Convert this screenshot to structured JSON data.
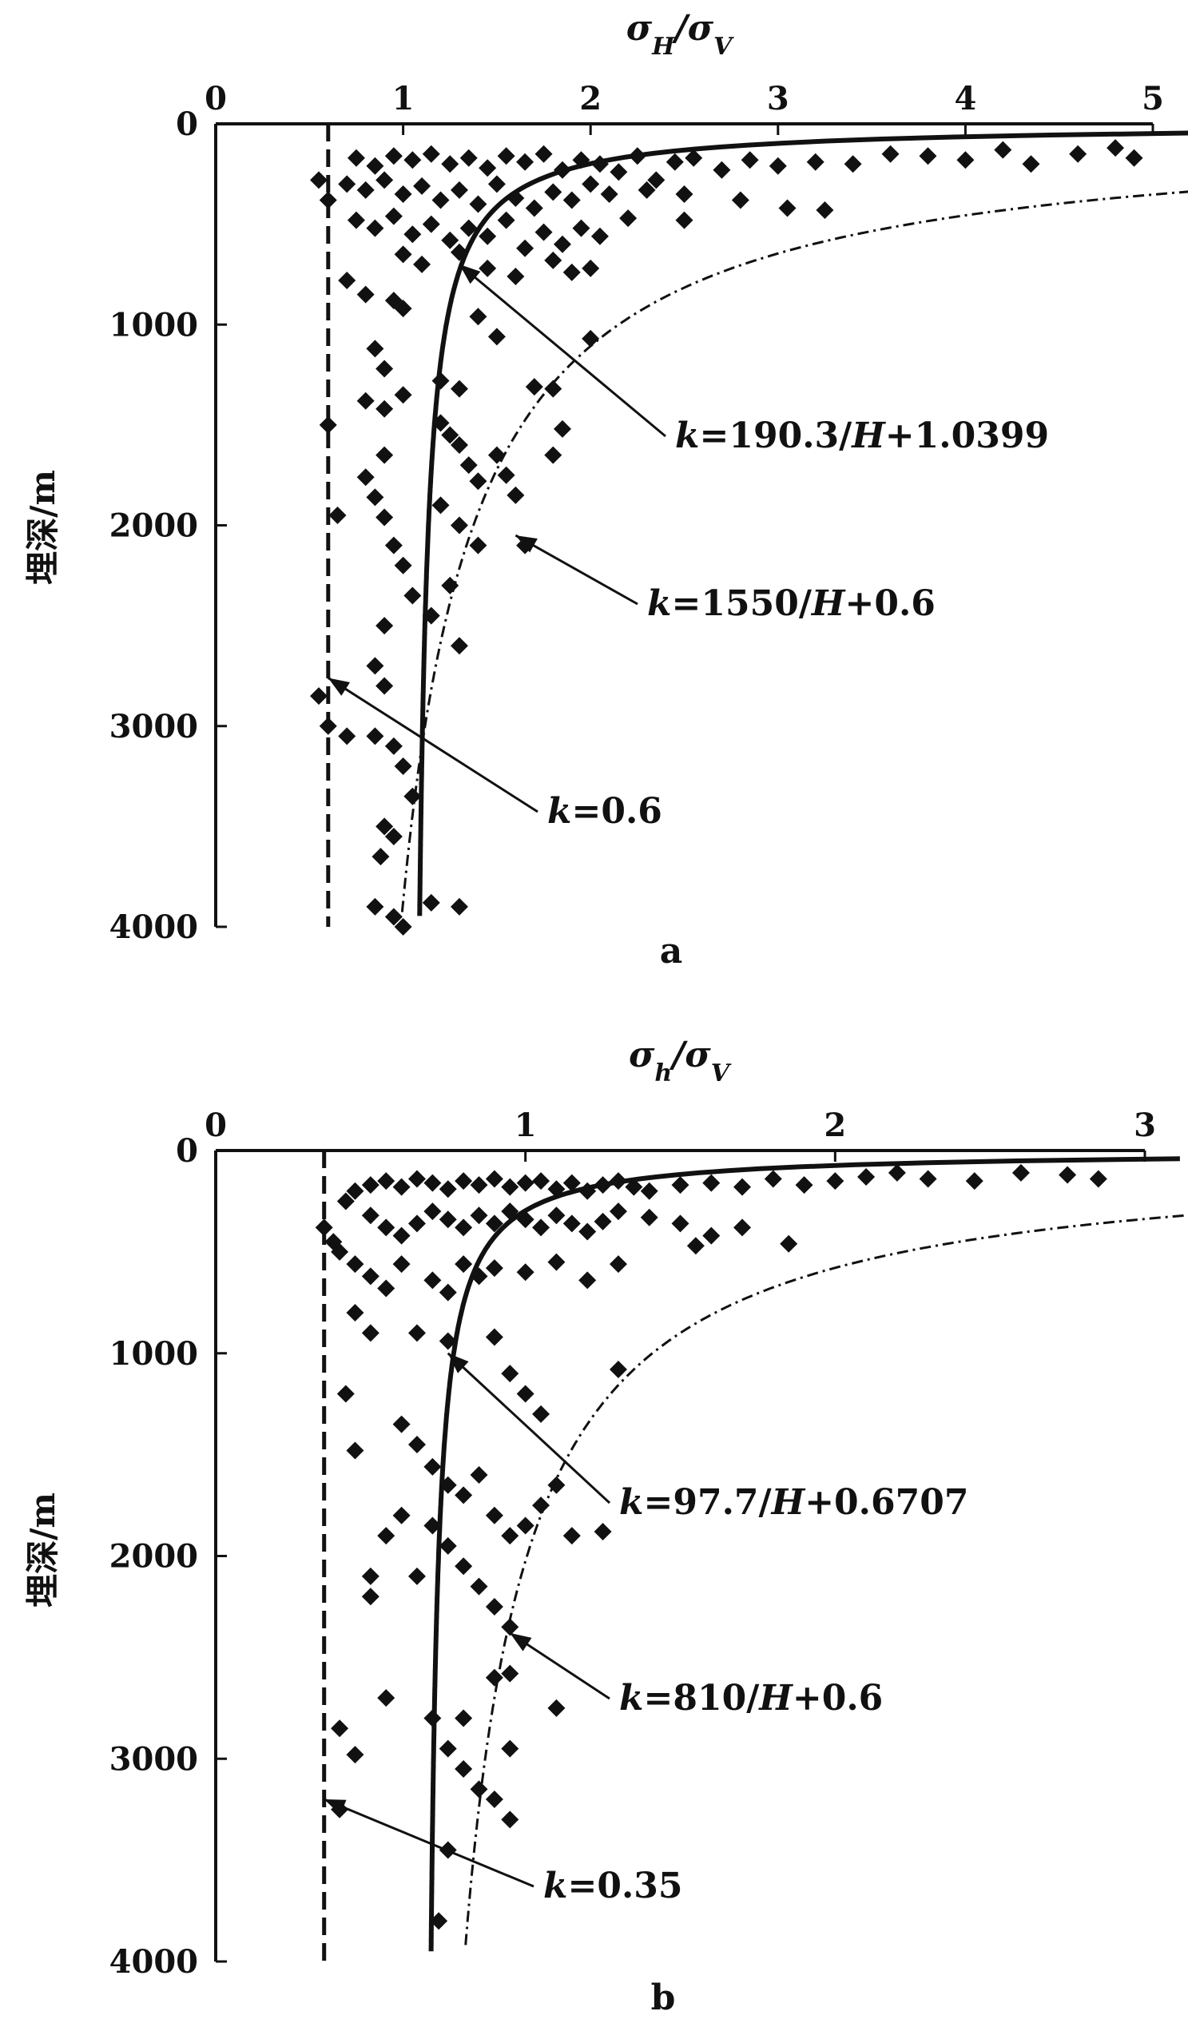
{
  "chart_data": [
    {
      "type": "scatter",
      "panel_label": "a",
      "x_label_parts": [
        {
          "t": "σ",
          "sub": false
        },
        {
          "t": "H",
          "sub": true
        },
        {
          "t": "/σ",
          "sub": false
        },
        {
          "t": "V",
          "sub": true
        }
      ],
      "ylabel": "埋深/m",
      "xlim": [
        0,
        5
      ],
      "ylim": [
        0,
        4000
      ],
      "y_inverted": true,
      "x_axis_position": "top",
      "x_ticks": [
        "0",
        "1",
        "2",
        "3",
        "4",
        "5"
      ],
      "y_ticks": [
        "0",
        "1000",
        "2000",
        "3000",
        "4000"
      ],
      "curves": [
        {
          "kind": "constant",
          "k": 0.6,
          "style": "dashed",
          "label": "k=0.6"
        },
        {
          "kind": "hyperbolic",
          "a": 190.3,
          "b": 1.0399,
          "style": "solid",
          "label": "k=190.3/H+1.0399"
        },
        {
          "kind": "hyperbolic",
          "a": 1550,
          "b": 0.6,
          "style": "dashdot",
          "label": "k=1550/H+0.6"
        }
      ],
      "annotations": [
        {
          "label": "k=190.3/H+1.0399",
          "parts": [
            {
              "t": "k",
              "i": true
            },
            {
              "t": "=190.3/",
              "i": false
            },
            {
              "t": "H",
              "i": true
            },
            {
              "t": "+1.0399",
              "i": false
            }
          ],
          "point": [
            1.3,
            700
          ]
        },
        {
          "label": "k=1550/H+0.6",
          "parts": [
            {
              "t": "k",
              "i": true
            },
            {
              "t": "=1550/",
              "i": false
            },
            {
              "t": "H",
              "i": true
            },
            {
              "t": "+0.6",
              "i": false
            }
          ],
          "point": [
            1.6,
            2050
          ]
        },
        {
          "label": "k=0.6",
          "parts": [
            {
              "t": "k",
              "i": true
            },
            {
              "t": "=0.6",
              "i": false
            }
          ],
          "point": [
            0.6,
            2760
          ]
        }
      ],
      "points": [
        [
          0.55,
          280
        ],
        [
          0.6,
          380
        ],
        [
          0.75,
          170
        ],
        [
          0.85,
          210
        ],
        [
          0.95,
          160
        ],
        [
          1.05,
          180
        ],
        [
          1.15,
          150
        ],
        [
          1.25,
          200
        ],
        [
          1.35,
          170
        ],
        [
          1.45,
          220
        ],
        [
          1.55,
          160
        ],
        [
          1.65,
          190
        ],
        [
          1.75,
          150
        ],
        [
          1.85,
          230
        ],
        [
          1.95,
          180
        ],
        [
          2.05,
          200
        ],
        [
          2.15,
          240
        ],
        [
          2.25,
          160
        ],
        [
          2.35,
          280
        ],
        [
          2.45,
          190
        ],
        [
          2.55,
          170
        ],
        [
          2.7,
          230
        ],
        [
          2.85,
          180
        ],
        [
          3.0,
          210
        ],
        [
          3.2,
          190
        ],
        [
          3.4,
          200
        ],
        [
          3.6,
          150
        ],
        [
          3.8,
          160
        ],
        [
          4.0,
          180
        ],
        [
          4.2,
          130
        ],
        [
          4.35,
          200
        ],
        [
          4.6,
          150
        ],
        [
          4.8,
          120
        ],
        [
          4.9,
          170
        ],
        [
          0.7,
          300
        ],
        [
          0.8,
          330
        ],
        [
          0.9,
          280
        ],
        [
          1.0,
          350
        ],
        [
          1.1,
          310
        ],
        [
          1.2,
          380
        ],
        [
          1.3,
          330
        ],
        [
          1.4,
          400
        ],
        [
          1.5,
          300
        ],
        [
          1.6,
          370
        ],
        [
          1.7,
          420
        ],
        [
          1.8,
          340
        ],
        [
          1.9,
          380
        ],
        [
          2.0,
          300
        ],
        [
          2.1,
          350
        ],
        [
          2.3,
          330
        ],
        [
          2.5,
          350
        ],
        [
          2.8,
          380
        ],
        [
          3.05,
          420
        ],
        [
          3.25,
          430
        ],
        [
          0.75,
          480
        ],
        [
          0.85,
          520
        ],
        [
          0.95,
          460
        ],
        [
          1.05,
          550
        ],
        [
          1.15,
          500
        ],
        [
          1.25,
          580
        ],
        [
          1.35,
          520
        ],
        [
          1.45,
          560
        ],
        [
          1.55,
          480
        ],
        [
          1.65,
          620
        ],
        [
          1.75,
          540
        ],
        [
          1.85,
          600
        ],
        [
          1.95,
          520
        ],
        [
          2.05,
          560
        ],
        [
          2.2,
          470
        ],
        [
          2.5,
          480
        ],
        [
          1.0,
          650
        ],
        [
          1.1,
          700
        ],
        [
          1.3,
          640
        ],
        [
          1.45,
          720
        ],
        [
          1.6,
          760
        ],
        [
          1.8,
          680
        ],
        [
          1.9,
          740
        ],
        [
          2.0,
          720
        ],
        [
          0.7,
          780
        ],
        [
          0.8,
          850
        ],
        [
          0.95,
          880
        ],
        [
          1.0,
          920
        ],
        [
          1.4,
          960
        ],
        [
          1.5,
          1060
        ],
        [
          0.85,
          1120
        ],
        [
          0.9,
          1220
        ],
        [
          2.0,
          1070
        ],
        [
          0.8,
          1380
        ],
        [
          0.9,
          1420
        ],
        [
          1.0,
          1350
        ],
        [
          1.2,
          1280
        ],
        [
          1.3,
          1320
        ],
        [
          1.7,
          1310
        ],
        [
          1.8,
          1320
        ],
        [
          1.85,
          1520
        ],
        [
          1.2,
          1490
        ],
        [
          1.25,
          1550
        ],
        [
          1.3,
          1600
        ],
        [
          1.35,
          1700
        ],
        [
          1.4,
          1780
        ],
        [
          1.5,
          1650
        ],
        [
          1.55,
          1750
        ],
        [
          1.8,
          1650
        ],
        [
          0.9,
          1650
        ],
        [
          0.8,
          1760
        ],
        [
          0.85,
          1860
        ],
        [
          0.9,
          1960
        ],
        [
          0.95,
          2100
        ],
        [
          1.0,
          2200
        ],
        [
          1.05,
          2350
        ],
        [
          1.15,
          2450
        ],
        [
          1.2,
          1900
        ],
        [
          1.3,
          2000
        ],
        [
          1.4,
          2100
        ],
        [
          1.6,
          1850
        ],
        [
          1.65,
          2100
        ],
        [
          1.25,
          2300
        ],
        [
          0.9,
          2500
        ],
        [
          0.85,
          2700
        ],
        [
          0.9,
          2800
        ],
        [
          0.55,
          2850
        ],
        [
          0.6,
          3000
        ],
        [
          0.85,
          3050
        ],
        [
          0.95,
          3100
        ],
        [
          1.0,
          3200
        ],
        [
          1.05,
          3350
        ],
        [
          0.9,
          3500
        ],
        [
          0.95,
          3550
        ],
        [
          0.88,
          3650
        ],
        [
          0.85,
          3900
        ],
        [
          0.95,
          3950
        ],
        [
          1.0,
          4000
        ],
        [
          1.3,
          3900
        ],
        [
          1.15,
          3880
        ],
        [
          1.3,
          2600
        ],
        [
          0.6,
          1500
        ],
        [
          0.65,
          1950
        ],
        [
          0.7,
          3050
        ]
      ]
    },
    {
      "type": "scatter",
      "panel_label": "b",
      "x_label_parts": [
        {
          "t": "σ",
          "sub": false
        },
        {
          "t": "h",
          "sub": true
        },
        {
          "t": "/σ",
          "sub": false
        },
        {
          "t": "V",
          "sub": true
        }
      ],
      "ylabel": "埋深/m",
      "xlim": [
        0,
        3
      ],
      "ylim": [
        0,
        4000
      ],
      "y_inverted": true,
      "x_axis_position": "top",
      "x_ticks": [
        "0",
        "1",
        "2",
        "3"
      ],
      "y_ticks": [
        "0",
        "1000",
        "2000",
        "3000",
        "4000"
      ],
      "curves": [
        {
          "kind": "constant",
          "k": 0.35,
          "style": "dashed",
          "label": "k=0.35"
        },
        {
          "kind": "hyperbolic",
          "a": 97.7,
          "b": 0.6707,
          "style": "solid",
          "label": "k=97.7/H+0.6707"
        },
        {
          "kind": "hyperbolic",
          "a": 810,
          "b": 0.6,
          "style": "dashdot",
          "label": "k=810/H+0.6"
        }
      ],
      "annotations": [
        {
          "label": "k=97.7/H+0.6707",
          "parts": [
            {
              "t": "k",
              "i": true
            },
            {
              "t": "=97.7/",
              "i": false
            },
            {
              "t": "H",
              "i": true
            },
            {
              "t": "+0.6707",
              "i": false
            }
          ],
          "point": [
            0.75,
            1000
          ]
        },
        {
          "label": "k=810/H+0.6",
          "parts": [
            {
              "t": "k",
              "i": true
            },
            {
              "t": "=810/",
              "i": false
            },
            {
              "t": "H",
              "i": true
            },
            {
              "t": "+0.6",
              "i": false
            }
          ],
          "point": [
            0.95,
            2380
          ]
        },
        {
          "label": "k=0.35",
          "parts": [
            {
              "t": "k",
              "i": true
            },
            {
              "t": "=0.35",
              "i": false
            }
          ],
          "point": [
            0.35,
            3200
          ]
        }
      ],
      "points": [
        [
          0.35,
          380
        ],
        [
          0.38,
          450
        ],
        [
          0.42,
          250
        ],
        [
          0.45,
          200
        ],
        [
          0.5,
          170
        ],
        [
          0.55,
          150
        ],
        [
          0.6,
          180
        ],
        [
          0.65,
          140
        ],
        [
          0.7,
          160
        ],
        [
          0.75,
          190
        ],
        [
          0.8,
          150
        ],
        [
          0.85,
          170
        ],
        [
          0.9,
          140
        ],
        [
          0.95,
          180
        ],
        [
          1.0,
          160
        ],
        [
          1.05,
          150
        ],
        [
          1.1,
          190
        ],
        [
          1.15,
          160
        ],
        [
          1.2,
          200
        ],
        [
          1.25,
          170
        ],
        [
          1.3,
          150
        ],
        [
          1.35,
          180
        ],
        [
          1.4,
          200
        ],
        [
          1.5,
          170
        ],
        [
          1.6,
          160
        ],
        [
          1.7,
          180
        ],
        [
          1.8,
          140
        ],
        [
          1.9,
          170
        ],
        [
          2.0,
          150
        ],
        [
          2.1,
          130
        ],
        [
          2.2,
          110
        ],
        [
          2.3,
          140
        ],
        [
          2.45,
          150
        ],
        [
          2.6,
          110
        ],
        [
          2.75,
          120
        ],
        [
          2.85,
          140
        ],
        [
          0.4,
          500
        ],
        [
          0.45,
          560
        ],
        [
          0.5,
          320
        ],
        [
          0.55,
          380
        ],
        [
          0.6,
          420
        ],
        [
          0.65,
          360
        ],
        [
          0.7,
          300
        ],
        [
          0.75,
          340
        ],
        [
          0.8,
          380
        ],
        [
          0.85,
          320
        ],
        [
          0.9,
          360
        ],
        [
          0.95,
          300
        ],
        [
          1.0,
          340
        ],
        [
          1.05,
          380
        ],
        [
          1.1,
          320
        ],
        [
          1.15,
          360
        ],
        [
          1.2,
          400
        ],
        [
          1.25,
          350
        ],
        [
          1.3,
          300
        ],
        [
          1.4,
          330
        ],
        [
          1.5,
          360
        ],
        [
          1.6,
          420
        ],
        [
          1.7,
          380
        ],
        [
          1.55,
          470
        ],
        [
          1.85,
          460
        ],
        [
          0.5,
          620
        ],
        [
          0.55,
          680
        ],
        [
          0.6,
          560
        ],
        [
          0.7,
          640
        ],
        [
          0.75,
          700
        ],
        [
          0.8,
          560
        ],
        [
          0.85,
          620
        ],
        [
          0.9,
          580
        ],
        [
          1.0,
          600
        ],
        [
          1.1,
          550
        ],
        [
          1.2,
          640
        ],
        [
          1.3,
          560
        ],
        [
          0.45,
          800
        ],
        [
          0.5,
          900
        ],
        [
          0.65,
          900
        ],
        [
          0.75,
          940
        ],
        [
          0.9,
          920
        ],
        [
          0.95,
          1100
        ],
        [
          1.0,
          1200
        ],
        [
          1.05,
          1300
        ],
        [
          1.3,
          1080
        ],
        [
          0.42,
          1200
        ],
        [
          0.45,
          1480
        ],
        [
          0.6,
          1350
        ],
        [
          0.65,
          1450
        ],
        [
          0.7,
          1560
        ],
        [
          0.75,
          1650
        ],
        [
          0.8,
          1700
        ],
        [
          0.85,
          1600
        ],
        [
          0.9,
          1800
        ],
        [
          0.95,
          1900
        ],
        [
          1.0,
          1850
        ],
        [
          1.05,
          1750
        ],
        [
          1.1,
          1650
        ],
        [
          1.15,
          1900
        ],
        [
          0.6,
          1800
        ],
        [
          0.7,
          1850
        ],
        [
          0.75,
          1950
        ],
        [
          0.8,
          2050
        ],
        [
          0.85,
          2150
        ],
        [
          0.9,
          2250
        ],
        [
          0.95,
          2350
        ],
        [
          0.65,
          2100
        ],
        [
          0.5,
          2100
        ],
        [
          0.5,
          2200
        ],
        [
          0.55,
          2700
        ],
        [
          0.7,
          2800
        ],
        [
          0.8,
          2800
        ],
        [
          0.9,
          2600
        ],
        [
          0.95,
          2580
        ],
        [
          0.75,
          2950
        ],
        [
          0.8,
          3050
        ],
        [
          0.85,
          3150
        ],
        [
          0.9,
          3200
        ],
        [
          0.95,
          3300
        ],
        [
          0.75,
          3450
        ],
        [
          0.72,
          3800
        ],
        [
          0.4,
          2850
        ],
        [
          0.45,
          2980
        ],
        [
          0.4,
          3250
        ],
        [
          0.95,
          2950
        ],
        [
          1.25,
          1880
        ],
        [
          1.1,
          2750
        ],
        [
          0.55,
          1900
        ]
      ]
    }
  ],
  "colors": {
    "ink": "#111111",
    "background": "#ffffff"
  }
}
